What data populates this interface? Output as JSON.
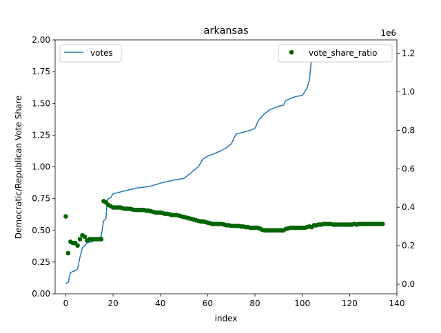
{
  "chart_data": {
    "type": "line",
    "title": "arkansas",
    "xlabel": "index",
    "ylabel_left": "Democratic/Republican Vote Share",
    "ylabel_right": "",
    "right_axis_multiplier": "1e6",
    "xlim": [
      -4.5,
      140
    ],
    "xticks": [
      0,
      20,
      40,
      60,
      80,
      100,
      120,
      140
    ],
    "ylim_left": [
      0,
      2.0
    ],
    "yticks_left": [
      "0.00",
      "0.25",
      "0.50",
      "0.75",
      "1.00",
      "1.25",
      "1.50",
      "1.75",
      "2.00"
    ],
    "ylim_right": [
      -0.05,
      1.27
    ],
    "yticks_right": [
      "0.0",
      "0.2",
      "0.4",
      "0.6",
      "0.8",
      "1.0",
      "1.2"
    ],
    "grid": false,
    "colors": {
      "votes": "#1f77b4",
      "vote_share_ratio": "#006400"
    },
    "series": [
      {
        "name": "votes",
        "axis": "right",
        "style": "line",
        "legend_loc": "top-left",
        "points": [
          [
            0,
            0.001
          ],
          [
            1,
            0.01
          ],
          [
            2,
            0.06
          ],
          [
            3,
            0.066
          ],
          [
            4,
            0.07
          ],
          [
            5,
            0.08
          ],
          [
            6,
            0.14
          ],
          [
            7,
            0.19
          ],
          [
            8,
            0.2
          ],
          [
            9,
            0.215
          ],
          [
            10,
            0.218
          ],
          [
            11,
            0.22
          ],
          [
            12,
            0.225
          ],
          [
            13,
            0.232
          ],
          [
            14,
            0.24
          ],
          [
            15,
            0.25
          ],
          [
            16,
            0.33
          ],
          [
            17,
            0.34
          ],
          [
            17.5,
            0.44
          ],
          [
            19,
            0.45
          ],
          [
            20,
            0.47
          ],
          [
            25,
            0.485
          ],
          [
            30,
            0.5
          ],
          [
            35,
            0.507
          ],
          [
            40,
            0.525
          ],
          [
            45,
            0.54
          ],
          [
            50,
            0.55
          ],
          [
            53,
            0.58
          ],
          [
            56,
            0.61
          ],
          [
            58,
            0.65
          ],
          [
            60,
            0.665
          ],
          [
            62,
            0.675
          ],
          [
            65,
            0.69
          ],
          [
            68,
            0.71
          ],
          [
            70,
            0.73
          ],
          [
            72,
            0.78
          ],
          [
            75,
            0.79
          ],
          [
            78,
            0.8
          ],
          [
            80,
            0.81
          ],
          [
            81,
            0.84
          ],
          [
            82,
            0.86
          ],
          [
            84,
            0.885
          ],
          [
            86,
            0.905
          ],
          [
            88,
            0.915
          ],
          [
            90,
            0.925
          ],
          [
            92,
            0.93
          ],
          [
            93,
            0.955
          ],
          [
            95,
            0.965
          ],
          [
            97,
            0.975
          ],
          [
            99,
            0.98
          ],
          [
            100,
            0.98
          ],
          [
            101,
            1.0
          ],
          [
            102,
            1.02
          ],
          [
            103,
            1.06
          ],
          [
            104,
            1.18
          ],
          [
            106,
            1.185
          ],
          [
            108,
            1.19
          ],
          [
            110,
            1.2
          ],
          [
            115,
            1.205
          ],
          [
            120,
            1.205
          ],
          [
            125,
            1.206
          ],
          [
            130,
            1.206
          ],
          [
            134,
            1.206
          ]
        ]
      },
      {
        "name": "vote_share_ratio",
        "axis": "left",
        "style": "scatter",
        "legend_loc": "top-right",
        "points": [
          [
            0,
            0.61
          ],
          [
            1,
            0.32
          ],
          [
            2,
            0.41
          ],
          [
            3,
            0.4
          ],
          [
            4,
            0.4
          ],
          [
            5,
            0.38
          ],
          [
            6,
            0.43
          ],
          [
            7,
            0.46
          ],
          [
            8,
            0.45
          ],
          [
            9,
            0.42
          ],
          [
            10,
            0.43
          ],
          [
            11,
            0.43
          ],
          [
            12,
            0.43
          ],
          [
            13,
            0.43
          ],
          [
            14,
            0.43
          ],
          [
            15,
            0.43
          ],
          [
            16,
            0.73
          ],
          [
            17,
            0.72
          ],
          [
            18,
            0.7
          ],
          [
            19,
            0.69
          ],
          [
            20,
            0.68
          ],
          [
            21,
            0.68
          ],
          [
            22,
            0.68
          ],
          [
            23,
            0.68
          ],
          [
            24,
            0.675
          ],
          [
            25,
            0.67
          ],
          [
            26,
            0.67
          ],
          [
            27,
            0.67
          ],
          [
            28,
            0.665
          ],
          [
            29,
            0.66
          ],
          [
            30,
            0.66
          ],
          [
            31,
            0.66
          ],
          [
            32,
            0.66
          ],
          [
            33,
            0.66
          ],
          [
            34,
            0.655
          ],
          [
            35,
            0.655
          ],
          [
            36,
            0.65
          ],
          [
            37,
            0.645
          ],
          [
            38,
            0.64
          ],
          [
            39,
            0.64
          ],
          [
            40,
            0.64
          ],
          [
            41,
            0.635
          ],
          [
            42,
            0.63
          ],
          [
            43,
            0.63
          ],
          [
            44,
            0.625
          ],
          [
            45,
            0.62
          ],
          [
            46,
            0.62
          ],
          [
            47,
            0.62
          ],
          [
            48,
            0.615
          ],
          [
            49,
            0.61
          ],
          [
            50,
            0.605
          ],
          [
            51,
            0.6
          ],
          [
            52,
            0.595
          ],
          [
            53,
            0.59
          ],
          [
            54,
            0.585
          ],
          [
            55,
            0.58
          ],
          [
            56,
            0.575
          ],
          [
            57,
            0.57
          ],
          [
            58,
            0.57
          ],
          [
            59,
            0.565
          ],
          [
            60,
            0.56
          ],
          [
            61,
            0.555
          ],
          [
            62,
            0.55
          ],
          [
            63,
            0.55
          ],
          [
            64,
            0.55
          ],
          [
            65,
            0.55
          ],
          [
            66,
            0.55
          ],
          [
            67,
            0.545
          ],
          [
            68,
            0.54
          ],
          [
            69,
            0.54
          ],
          [
            70,
            0.535
          ],
          [
            71,
            0.535
          ],
          [
            72,
            0.535
          ],
          [
            73,
            0.535
          ],
          [
            74,
            0.53
          ],
          [
            75,
            0.53
          ],
          [
            76,
            0.525
          ],
          [
            77,
            0.525
          ],
          [
            78,
            0.52
          ],
          [
            79,
            0.52
          ],
          [
            80,
            0.52
          ],
          [
            81,
            0.52
          ],
          [
            82,
            0.515
          ],
          [
            83,
            0.505
          ],
          [
            84,
            0.5
          ],
          [
            85,
            0.5
          ],
          [
            86,
            0.5
          ],
          [
            87,
            0.5
          ],
          [
            88,
            0.5
          ],
          [
            89,
            0.5
          ],
          [
            90,
            0.5
          ],
          [
            91,
            0.5
          ],
          [
            92,
            0.5
          ],
          [
            93,
            0.51
          ],
          [
            94,
            0.515
          ],
          [
            95,
            0.52
          ],
          [
            96,
            0.52
          ],
          [
            97,
            0.52
          ],
          [
            98,
            0.52
          ],
          [
            99,
            0.52
          ],
          [
            100,
            0.52
          ],
          [
            101,
            0.52
          ],
          [
            102,
            0.525
          ],
          [
            103,
            0.53
          ],
          [
            104,
            0.525
          ],
          [
            105,
            0.54
          ],
          [
            106,
            0.54
          ],
          [
            107,
            0.545
          ],
          [
            108,
            0.545
          ],
          [
            109,
            0.55
          ],
          [
            110,
            0.55
          ],
          [
            111,
            0.55
          ],
          [
            112,
            0.55
          ],
          [
            113,
            0.545
          ],
          [
            114,
            0.545
          ],
          [
            115,
            0.545
          ],
          [
            116,
            0.545
          ],
          [
            117,
            0.545
          ],
          [
            118,
            0.545
          ],
          [
            119,
            0.545
          ],
          [
            120,
            0.545
          ],
          [
            121,
            0.545
          ],
          [
            122,
            0.55
          ],
          [
            123,
            0.545
          ],
          [
            124,
            0.55
          ],
          [
            125,
            0.55
          ],
          [
            126,
            0.55
          ],
          [
            127,
            0.55
          ],
          [
            128,
            0.55
          ],
          [
            129,
            0.55
          ],
          [
            130,
            0.55
          ],
          [
            131,
            0.55
          ],
          [
            132,
            0.55
          ],
          [
            133,
            0.55
          ],
          [
            134,
            0.55
          ]
        ]
      }
    ]
  }
}
